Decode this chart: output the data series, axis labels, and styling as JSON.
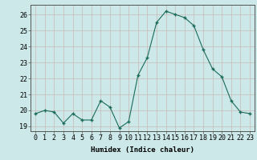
{
  "x": [
    0,
    1,
    2,
    3,
    4,
    5,
    6,
    7,
    8,
    9,
    10,
    11,
    12,
    13,
    14,
    15,
    16,
    17,
    18,
    19,
    20,
    21,
    22,
    23
  ],
  "y": [
    19.8,
    20.0,
    19.9,
    19.2,
    19.8,
    19.4,
    19.4,
    20.6,
    20.2,
    18.9,
    19.3,
    22.2,
    23.3,
    25.5,
    26.2,
    26.0,
    25.8,
    25.3,
    23.8,
    22.6,
    22.1,
    20.6,
    19.9,
    19.8
  ],
  "line_color": "#1a6b5a",
  "marker": "+",
  "marker_color": "#1a6b5a",
  "bg_color": "#cce8e8",
  "grid_color": "#c8b8b8",
  "xlabel": "Humidex (Indice chaleur)",
  "ylabel_ticks": [
    19,
    20,
    21,
    22,
    23,
    24,
    25,
    26
  ],
  "xlim": [
    -0.5,
    23.5
  ],
  "ylim": [
    18.7,
    26.6
  ],
  "xlabel_fontsize": 6.5,
  "tick_fontsize": 6.0
}
